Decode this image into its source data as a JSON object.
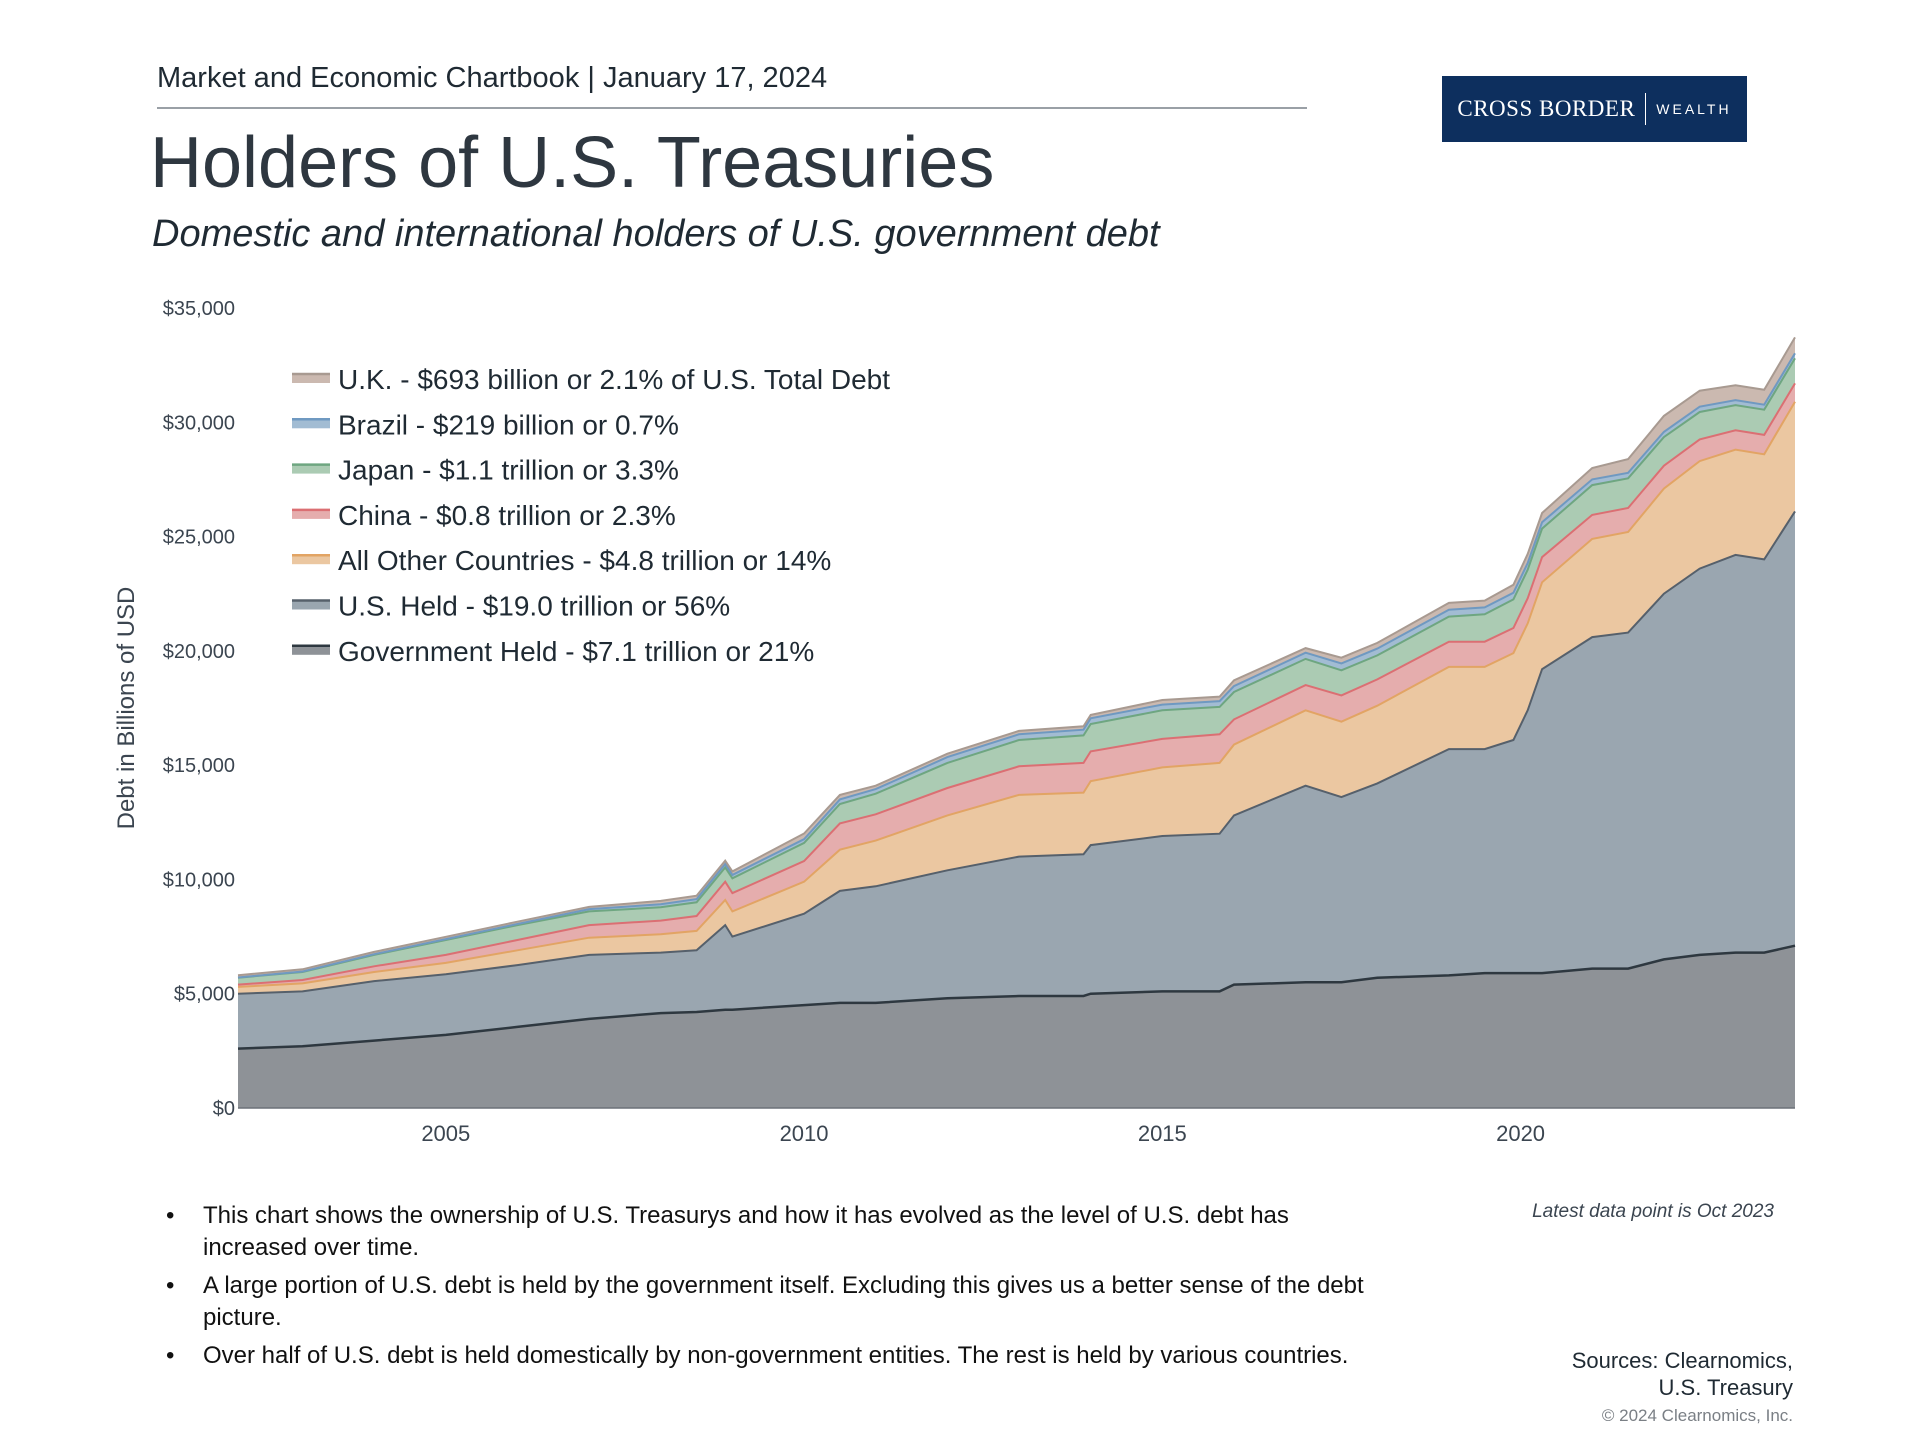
{
  "header": {
    "line": "Market and Economic Chartbook | January 17, 2024",
    "logo_main": "CROSS BORDER",
    "logo_sub": "WEALTH",
    "title": "Holders of U.S. Treasuries",
    "subtitle": "Domestic and international holders of U.S. government debt"
  },
  "colors": {
    "government_held": "#8e9297",
    "us_held": "#9aa6b0",
    "all_other": "#ebc7a1",
    "china": "#e5adad",
    "japan": "#abcbb3",
    "brazil": "#a2bcd3",
    "uk": "#cbb9b0",
    "line_dark": "#2e3840",
    "line_us": "#56606b",
    "line_orange": "#e2a464",
    "line_red": "#db6f73",
    "line_green": "#6ea681",
    "line_blue": "#6f99c1",
    "line_uk": "#a89a91"
  },
  "chart_data": {
    "type": "area",
    "stacked": true,
    "ylabel": "Debt in Billions of USD",
    "y_tick_labels": [
      "$0",
      "$5,000",
      "$10,000",
      "$15,000",
      "$20,000",
      "$25,000",
      "$30,000",
      "$35,000"
    ],
    "y_ticks": [
      0,
      5000,
      10000,
      15000,
      20000,
      25000,
      30000,
      35000
    ],
    "ylim": [
      0,
      35000
    ],
    "x_tick_labels": [
      "2005",
      "2010",
      "2015",
      "2020"
    ],
    "x_ticks": [
      2005,
      2010,
      2015,
      2020
    ],
    "xlim": [
      2002.1,
      2023.83
    ],
    "x": [
      2002.1,
      2003.0,
      2004.0,
      2005.0,
      2006.0,
      2007.0,
      2008.0,
      2008.5,
      2008.9,
      2009.0,
      2010.0,
      2010.5,
      2011.0,
      2012.0,
      2013.0,
      2013.9,
      2014.0,
      2015.0,
      2015.8,
      2016.0,
      2017.0,
      2017.5,
      2018.0,
      2019.0,
      2019.5,
      2019.9,
      2020.1,
      2020.3,
      2021.0,
      2021.5,
      2022.0,
      2022.5,
      2023.0,
      2023.4,
      2023.83
    ],
    "series": [
      {
        "name": "Government Held",
        "legend": "Government Held - $7.1 trillion or 21%",
        "values": [
          2600,
          2700,
          2950,
          3200,
          3550,
          3900,
          4150,
          4200,
          4300,
          4300,
          4500,
          4600,
          4600,
          4800,
          4900,
          4900,
          5000,
          5100,
          5100,
          5400,
          5500,
          5500,
          5700,
          5800,
          5900,
          5900,
          5900,
          5900,
          6100,
          6100,
          6500,
          6700,
          6800,
          6800,
          7100
        ]
      },
      {
        "name": "U.S. Held",
        "legend": "U.S. Held - $19.0 trillion or 56%",
        "values": [
          2400,
          2400,
          2600,
          2650,
          2700,
          2800,
          2650,
          2700,
          3700,
          3200,
          4000,
          4900,
          5100,
          5600,
          6100,
          6200,
          6500,
          6800,
          6900,
          7400,
          8600,
          8100,
          8500,
          9900,
          9800,
          10200,
          11500,
          13300,
          14500,
          14700,
          16000,
          16900,
          17400,
          17200,
          19000
        ]
      },
      {
        "name": "All Other Countries",
        "legend": "All Other Countries - $4.8 trillion or 14%",
        "values": [
          300,
          350,
          400,
          500,
          650,
          750,
          800,
          850,
          1100,
          1100,
          1400,
          1800,
          2000,
          2400,
          2700,
          2700,
          2800,
          3000,
          3100,
          3100,
          3300,
          3300,
          3400,
          3600,
          3600,
          3800,
          3800,
          3800,
          4300,
          4400,
          4600,
          4700,
          4600,
          4600,
          4800
        ]
      },
      {
        "name": "China",
        "legend": "China - $0.8 trillion or 2.3%",
        "values": [
          100,
          150,
          250,
          350,
          450,
          550,
          600,
          650,
          800,
          800,
          900,
          1150,
          1150,
          1200,
          1250,
          1300,
          1300,
          1250,
          1250,
          1100,
          1100,
          1150,
          1150,
          1100,
          1100,
          1100,
          1100,
          1100,
          1050,
          1050,
          1000,
          950,
          850,
          850,
          800
        ]
      },
      {
        "name": "Japan",
        "legend": "Japan - $1.1 trillion or 3.3%",
        "values": [
          300,
          350,
          500,
          650,
          650,
          600,
          580,
          600,
          620,
          650,
          800,
          850,
          900,
          1100,
          1150,
          1200,
          1200,
          1250,
          1200,
          1200,
          1150,
          1100,
          1050,
          1100,
          1200,
          1250,
          1250,
          1250,
          1300,
          1300,
          1250,
          1200,
          1100,
          1100,
          1100
        ]
      },
      {
        "name": "Brazil",
        "legend": "Brazil - $219 billion or 0.7%",
        "values": [
          10,
          20,
          30,
          40,
          50,
          100,
          130,
          140,
          150,
          150,
          160,
          200,
          200,
          250,
          250,
          250,
          250,
          250,
          250,
          260,
          270,
          300,
          300,
          300,
          300,
          290,
          290,
          280,
          250,
          240,
          230,
          230,
          220,
          220,
          219
        ]
      },
      {
        "name": "U.K.",
        "legend": "U.K. - $693 billion or 2.1% of U.S. Total Debt",
        "values": [
          100,
          100,
          100,
          100,
          100,
          100,
          150,
          150,
          150,
          150,
          250,
          200,
          150,
          150,
          150,
          150,
          150,
          200,
          200,
          250,
          200,
          250,
          250,
          300,
          300,
          350,
          400,
          400,
          500,
          600,
          700,
          700,
          650,
          650,
          693
        ]
      }
    ],
    "legend_order_top_to_bottom": [
      "U.K.",
      "Brazil",
      "Japan",
      "China",
      "All Other Countries",
      "U.S. Held",
      "Government Held"
    ],
    "annotation": "Latest data point is Oct 2023",
    "grid": false,
    "legend_position": "top-left"
  },
  "bullets": [
    "This chart shows the ownership of U.S. Treasurys and how it has evolved as the level of U.S. debt has increased over time.",
    "A large portion of U.S. debt is held by the government itself. Excluding this gives us a better sense of the debt picture.",
    "Over half of U.S. debt is held domestically by non-government entities. The rest is held by various countries."
  ],
  "footer": {
    "sources_line1": "Sources: Clearnomics,",
    "sources_line2": "U.S. Treasury",
    "copyright": "© 2024 Clearnomics, Inc."
  }
}
